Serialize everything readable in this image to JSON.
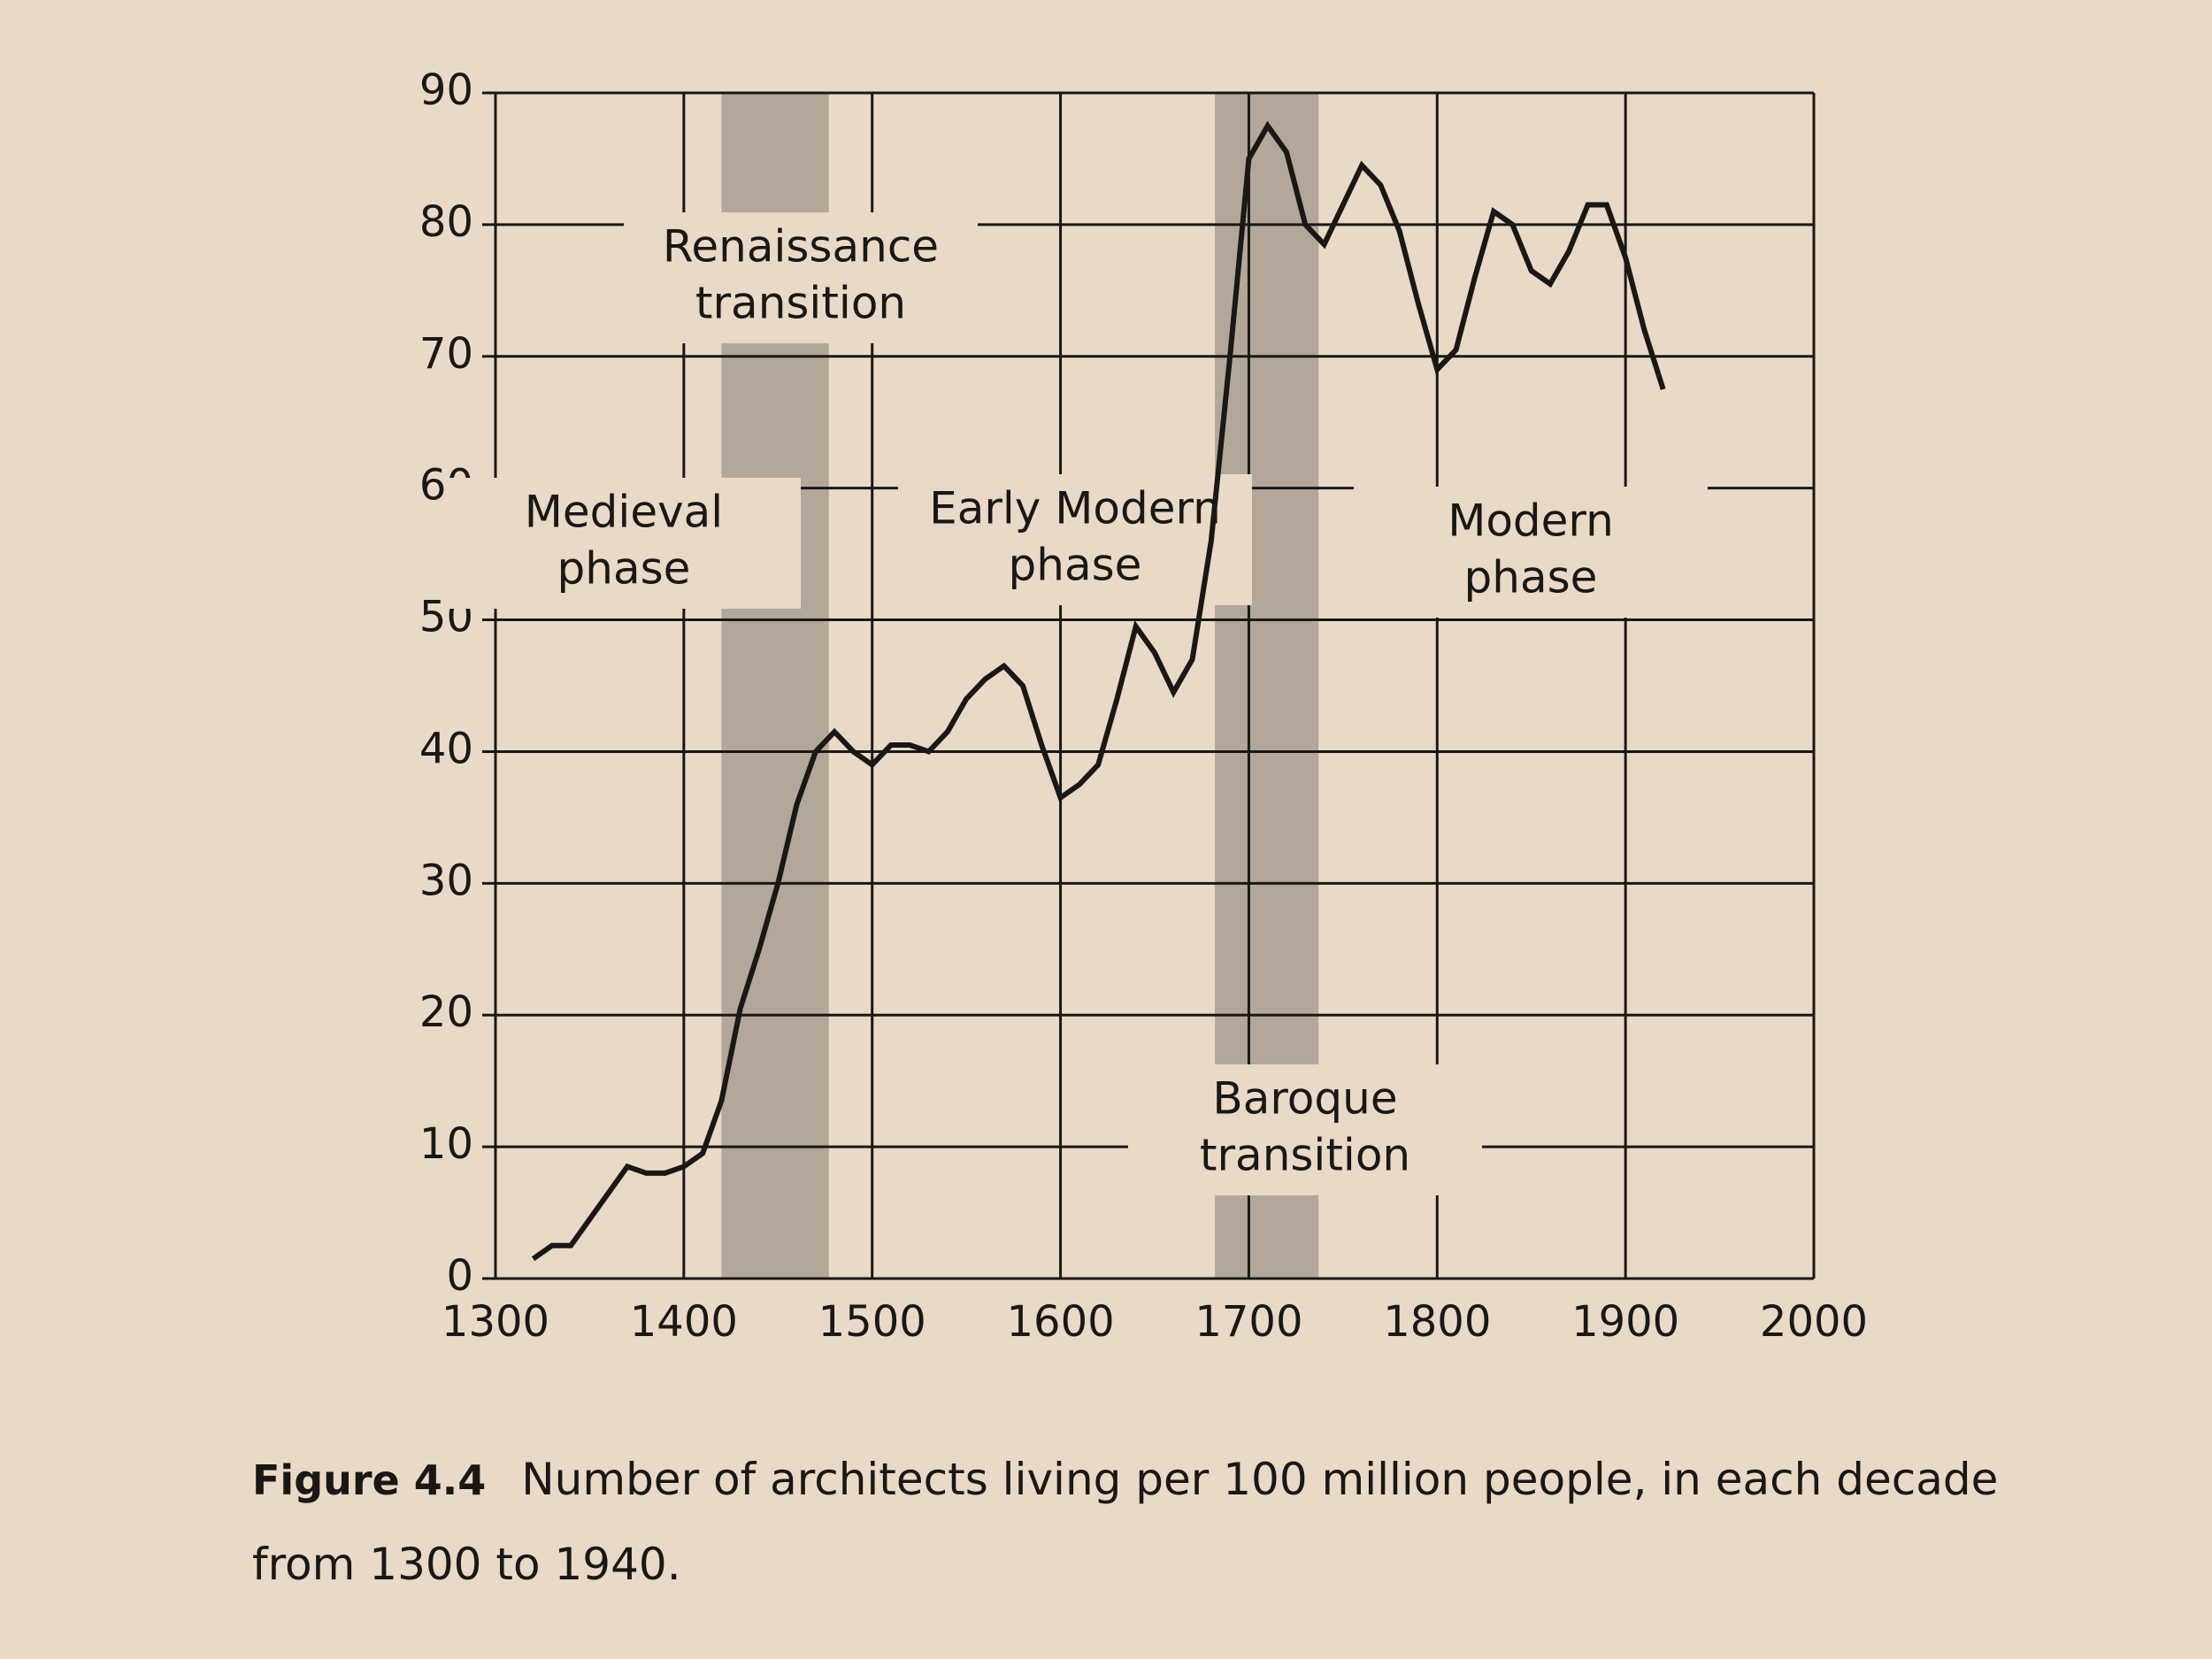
{
  "chart_data": {
    "type": "line",
    "caption": {
      "label": "Figure 4.4",
      "text": "Number of architects living per 100 million people, in each decade from 1300 to 1940."
    },
    "x": [
      1320,
      1330,
      1340,
      1350,
      1360,
      1370,
      1380,
      1390,
      1400,
      1410,
      1420,
      1430,
      1440,
      1450,
      1460,
      1470,
      1480,
      1490,
      1500,
      1510,
      1520,
      1530,
      1540,
      1550,
      1560,
      1570,
      1580,
      1590,
      1600,
      1610,
      1620,
      1630,
      1640,
      1650,
      1660,
      1670,
      1680,
      1690,
      1700,
      1710,
      1720,
      1730,
      1740,
      1750,
      1760,
      1770,
      1780,
      1790,
      1800,
      1810,
      1820,
      1830,
      1840,
      1850,
      1860,
      1870,
      1880,
      1890,
      1900,
      1910,
      1920
    ],
    "values": [
      1.5,
      2.5,
      2.5,
      4.5,
      6.5,
      8.5,
      8,
      8,
      8.5,
      9.5,
      13.5,
      20.5,
      25,
      30,
      36,
      40,
      41.5,
      40,
      39,
      40.5,
      40.5,
      40,
      41.5,
      44,
      45.5,
      46.5,
      45,
      40.5,
      36.5,
      37.5,
      39,
      44,
      49.5,
      47.5,
      44.5,
      47,
      56,
      70,
      85,
      87.5,
      85.5,
      80,
      78.5,
      81.5,
      84.5,
      83,
      79.5,
      74,
      69,
      70.5,
      76,
      81,
      80,
      76.5,
      75.5,
      78,
      81.5,
      81.5,
      77.5,
      72,
      67.5
    ],
    "color": "#1a1714",
    "xlim": [
      1300,
      2000
    ],
    "xticks": [
      1300,
      1400,
      1500,
      1600,
      1700,
      1800,
      1900,
      2000
    ],
    "ylim": [
      0,
      90
    ],
    "yticks": [
      0,
      10,
      20,
      30,
      40,
      50,
      60,
      70,
      80,
      90
    ],
    "grid": true,
    "bands": [
      {
        "label": [
          "Renaissance",
          "transition"
        ],
        "start": 1420,
        "end": 1477,
        "color": "#a89d90"
      },
      {
        "label": [
          "Baroque",
          "transition"
        ],
        "start": 1682,
        "end": 1737,
        "color": "#a89d90"
      }
    ],
    "annotations": [
      {
        "label": [
          "Medieval",
          "phase"
        ]
      },
      {
        "label": [
          "Early Modern",
          "phase"
        ]
      },
      {
        "label": [
          "Modern",
          "phase"
        ]
      }
    ]
  }
}
